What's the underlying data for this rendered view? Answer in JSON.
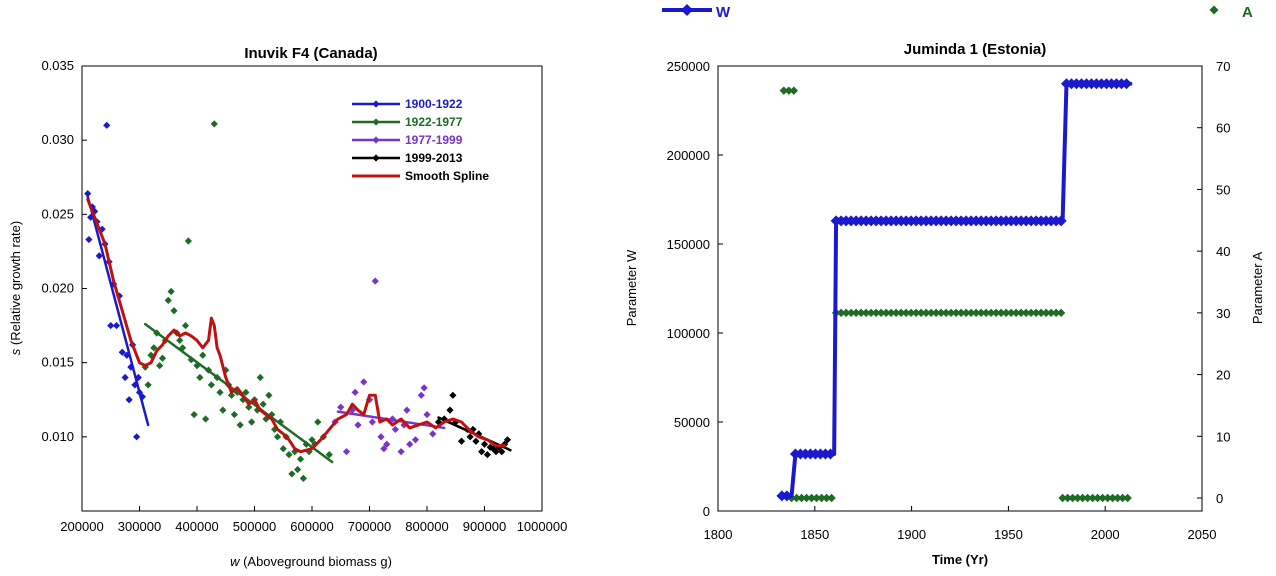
{
  "chart_data": [
    {
      "type": "scatter",
      "title": "Inuvik F4  (Canada)",
      "xlabel_italic": "w",
      "xlabel_rest": " (Aboveground biomass g)",
      "ylabel_italic": "s",
      "ylabel_rest": " (Relative growth rate)",
      "xlim": [
        200000,
        1000000
      ],
      "ylim": [
        0.005,
        0.035
      ],
      "xticks": [
        200000,
        300000,
        400000,
        500000,
        600000,
        700000,
        800000,
        900000,
        1000000
      ],
      "xtick_labels": [
        "200000",
        "300000",
        "400000",
        "500000",
        "600000",
        "700000",
        "800000",
        "900000",
        "1000000"
      ],
      "yticks": [
        0.01,
        0.015,
        0.02,
        0.025,
        0.03,
        0.035
      ],
      "ytick_labels": [
        "0.010",
        "0.015",
        "0.020",
        "0.025",
        "0.030",
        "0.035"
      ],
      "legend_position": "top-right",
      "series": [
        {
          "name": "1900-1922",
          "color": "#1a1acc",
          "marker": "diamond",
          "points": [
            [
              210000,
              0.0264
            ],
            [
              212000,
              0.0233
            ],
            [
              215000,
              0.0248
            ],
            [
              218000,
              0.0255
            ],
            [
              222000,
              0.0252
            ],
            [
              226000,
              0.0245
            ],
            [
              230000,
              0.0222
            ],
            [
              235000,
              0.024
            ],
            [
              240000,
              0.023
            ],
            [
              243000,
              0.031
            ],
            [
              247000,
              0.0218
            ],
            [
              250000,
              0.0175
            ],
            [
              255000,
              0.0203
            ],
            [
              260000,
              0.0175
            ],
            [
              265000,
              0.0195
            ],
            [
              270000,
              0.0157
            ],
            [
              275000,
              0.014
            ],
            [
              278000,
              0.0155
            ],
            [
              282000,
              0.0125
            ],
            [
              285000,
              0.0147
            ],
            [
              288000,
              0.0162
            ],
            [
              292000,
              0.0135
            ],
            [
              295000,
              0.01
            ],
            [
              298000,
              0.014
            ],
            [
              300000,
              0.013
            ],
            [
              305000,
              0.0127
            ]
          ],
          "fit": [
            [
              210000,
              0.0262
            ],
            [
              315000,
              0.0108
            ]
          ]
        },
        {
          "name": "1922-1977",
          "color": "#1d6b24",
          "marker": "diamond",
          "points": [
            [
              310000,
              0.0147
            ],
            [
              315000,
              0.0135
            ],
            [
              320000,
              0.0155
            ],
            [
              325000,
              0.016
            ],
            [
              330000,
              0.017
            ],
            [
              335000,
              0.0148
            ],
            [
              340000,
              0.0153
            ],
            [
              345000,
              0.0165
            ],
            [
              350000,
              0.0192
            ],
            [
              355000,
              0.0198
            ],
            [
              360000,
              0.0185
            ],
            [
              365000,
              0.017
            ],
            [
              370000,
              0.0165
            ],
            [
              375000,
              0.016
            ],
            [
              380000,
              0.0175
            ],
            [
              385000,
              0.0232
            ],
            [
              390000,
              0.0152
            ],
            [
              395000,
              0.0115
            ],
            [
              400000,
              0.0148
            ],
            [
              405000,
              0.014
            ],
            [
              410000,
              0.0155
            ],
            [
              415000,
              0.0112
            ],
            [
              420000,
              0.0145
            ],
            [
              425000,
              0.0135
            ],
            [
              430000,
              0.0311
            ],
            [
              435000,
              0.014
            ],
            [
              440000,
              0.013
            ],
            [
              445000,
              0.0118
            ],
            [
              450000,
              0.0145
            ],
            [
              455000,
              0.0135
            ],
            [
              460000,
              0.0128
            ],
            [
              465000,
              0.0115
            ],
            [
              470000,
              0.013
            ],
            [
              475000,
              0.0108
            ],
            [
              480000,
              0.0125
            ],
            [
              485000,
              0.013
            ],
            [
              490000,
              0.012
            ],
            [
              495000,
              0.011
            ],
            [
              500000,
              0.0125
            ],
            [
              505000,
              0.0118
            ],
            [
              510000,
              0.014
            ],
            [
              515000,
              0.0122
            ],
            [
              520000,
              0.0112
            ],
            [
              525000,
              0.0128
            ],
            [
              530000,
              0.0115
            ],
            [
              535000,
              0.0105
            ],
            [
              540000,
              0.01
            ],
            [
              545000,
              0.011
            ],
            [
              550000,
              0.0092
            ],
            [
              555000,
              0.01
            ],
            [
              560000,
              0.0088
            ],
            [
              565000,
              0.0075
            ],
            [
              570000,
              0.009
            ],
            [
              575000,
              0.0078
            ],
            [
              580000,
              0.0085
            ],
            [
              585000,
              0.0072
            ],
            [
              590000,
              0.0095
            ],
            [
              595000,
              0.009
            ],
            [
              600000,
              0.0098
            ],
            [
              605000,
              0.0095
            ],
            [
              610000,
              0.011
            ],
            [
              620000,
              0.01
            ],
            [
              630000,
              0.0088
            ]
          ],
          "fit": [
            [
              310000,
              0.0176
            ],
            [
              635000,
              0.0083
            ]
          ]
        },
        {
          "name": "1977-1999",
          "color": "#7a33cc",
          "marker": "diamond",
          "points": [
            [
              640000,
              0.011
            ],
            [
              650000,
              0.012
            ],
            [
              660000,
              0.009
            ],
            [
              670000,
              0.0118
            ],
            [
              675000,
              0.013
            ],
            [
              680000,
              0.0108
            ],
            [
              690000,
              0.0137
            ],
            [
              700000,
              0.0125
            ],
            [
              705000,
              0.011
            ],
            [
              710000,
              0.0205
            ],
            [
              720000,
              0.01
            ],
            [
              725000,
              0.0092
            ],
            [
              730000,
              0.0095
            ],
            [
              740000,
              0.0112
            ],
            [
              745000,
              0.0105
            ],
            [
              755000,
              0.009
            ],
            [
              760000,
              0.0108
            ],
            [
              765000,
              0.0118
            ],
            [
              770000,
              0.0095
            ],
            [
              780000,
              0.0098
            ],
            [
              790000,
              0.0128
            ],
            [
              795000,
              0.0133
            ],
            [
              800000,
              0.0115
            ],
            [
              810000,
              0.0102
            ]
          ],
          "fit": [
            [
              645000,
              0.0117
            ],
            [
              830000,
              0.0106
            ]
          ]
        },
        {
          "name": "1999-2013",
          "color": "#000000",
          "marker": "diamond",
          "points": [
            [
              820000,
              0.011
            ],
            [
              830000,
              0.0112
            ],
            [
              840000,
              0.0118
            ],
            [
              845000,
              0.0128
            ],
            [
              850000,
              0.011
            ],
            [
              860000,
              0.0097
            ],
            [
              870000,
              0.0105
            ],
            [
              875000,
              0.01
            ],
            [
              880000,
              0.0105
            ],
            [
              885000,
              0.0097
            ],
            [
              890000,
              0.0102
            ],
            [
              895000,
              0.009
            ],
            [
              900000,
              0.0095
            ],
            [
              905000,
              0.0088
            ],
            [
              910000,
              0.0093
            ],
            [
              915000,
              0.0092
            ],
            [
              920000,
              0.009
            ],
            [
              925000,
              0.0093
            ],
            [
              930000,
              0.009
            ],
            [
              935000,
              0.0095
            ],
            [
              940000,
              0.0098
            ]
          ],
          "fit": [
            [
              820000,
              0.0113
            ],
            [
              945000,
              0.0091
            ]
          ]
        }
      ],
      "spline": {
        "name": "Smooth Spline",
        "color": "#c01010",
        "points": [
          [
            210000,
            0.026
          ],
          [
            225000,
            0.0245
          ],
          [
            240000,
            0.023
          ],
          [
            255000,
            0.0205
          ],
          [
            270000,
            0.0185
          ],
          [
            285000,
            0.0165
          ],
          [
            300000,
            0.015
          ],
          [
            310000,
            0.0148
          ],
          [
            320000,
            0.015
          ],
          [
            330000,
            0.0158
          ],
          [
            340000,
            0.0162
          ],
          [
            350000,
            0.0168
          ],
          [
            360000,
            0.0172
          ],
          [
            370000,
            0.0168
          ],
          [
            380000,
            0.017
          ],
          [
            390000,
            0.0168
          ],
          [
            400000,
            0.0165
          ],
          [
            410000,
            0.016
          ],
          [
            420000,
            0.0165
          ],
          [
            425000,
            0.018
          ],
          [
            430000,
            0.0175
          ],
          [
            435000,
            0.016
          ],
          [
            440000,
            0.0155
          ],
          [
            450000,
            0.014
          ],
          [
            460000,
            0.013
          ],
          [
            470000,
            0.0133
          ],
          [
            480000,
            0.0128
          ],
          [
            490000,
            0.0122
          ],
          [
            500000,
            0.0125
          ],
          [
            510000,
            0.0118
          ],
          [
            520000,
            0.0115
          ],
          [
            530000,
            0.0112
          ],
          [
            540000,
            0.0105
          ],
          [
            550000,
            0.0102
          ],
          [
            560000,
            0.0098
          ],
          [
            570000,
            0.0092
          ],
          [
            580000,
            0.009
          ],
          [
            600000,
            0.0092
          ],
          [
            615000,
            0.0098
          ],
          [
            630000,
            0.0105
          ],
          [
            645000,
            0.0112
          ],
          [
            660000,
            0.0115
          ],
          [
            670000,
            0.0122
          ],
          [
            680000,
            0.0118
          ],
          [
            690000,
            0.0115
          ],
          [
            700000,
            0.0128
          ],
          [
            710000,
            0.0128
          ],
          [
            718000,
            0.011
          ],
          [
            730000,
            0.0112
          ],
          [
            740000,
            0.0108
          ],
          [
            755000,
            0.0112
          ],
          [
            770000,
            0.0106
          ],
          [
            785000,
            0.0108
          ],
          [
            800000,
            0.011
          ],
          [
            815000,
            0.0106
          ],
          [
            830000,
            0.011
          ],
          [
            845000,
            0.0112
          ],
          [
            860000,
            0.011
          ],
          [
            875000,
            0.0104
          ],
          [
            890000,
            0.01
          ],
          [
            905000,
            0.0098
          ],
          [
            920000,
            0.0094
          ],
          [
            935000,
            0.0094
          ]
        ]
      }
    },
    {
      "type": "scatter",
      "title": "Juminda 1 (Estonia)",
      "xlabel": "Time (Yr)",
      "ylabel_left": "Parameter W",
      "ylabel_right": "Parameter A",
      "xlim": [
        1800,
        2050
      ],
      "ylim_left": [
        0,
        250000
      ],
      "ylim_right": [
        0,
        70
      ],
      "xticks": [
        1800,
        1850,
        1900,
        1950,
        2000,
        2050
      ],
      "xtick_labels": [
        "1800",
        "1850",
        "1900",
        "1950",
        "2000",
        "2050"
      ],
      "yticks_left": [
        0,
        50000,
        100000,
        150000,
        200000,
        250000
      ],
      "ytick_labels_left": [
        "0",
        "50000",
        "100000",
        "150000",
        "200000",
        "250000"
      ],
      "yticks_right": [
        0,
        10,
        20,
        30,
        40,
        50,
        60,
        70
      ],
      "ytick_labels_right": [
        "0",
        "10",
        "20",
        "30",
        "40",
        "50",
        "60",
        "70"
      ],
      "legend_position": "top, outside plot",
      "series": [
        {
          "name": "W",
          "color": "#1a1acc",
          "axis": "left",
          "marker": "diamond",
          "line": [
            [
              1833,
              8500
            ],
            [
              1838,
              8500
            ],
            [
              1840,
              32000
            ],
            [
              1860,
              32000
            ],
            [
              1861,
              163000
            ],
            [
              1978,
              163000
            ],
            [
              1980,
              240000
            ],
            [
              2013,
              240000
            ]
          ]
        },
        {
          "name": "A",
          "color": "#1d6b24",
          "axis": "right",
          "marker": "diamond",
          "segments": [
            {
              "x_start": 1834,
              "x_end": 1840,
              "value": 66
            },
            {
              "x_start": 1838,
              "x_end": 1860,
              "value": 0
            },
            {
              "x_start": 1861,
              "x_end": 1978,
              "value": 30
            },
            {
              "x_start": 1978,
              "x_end": 2013,
              "value": 0
            }
          ]
        }
      ]
    }
  ]
}
